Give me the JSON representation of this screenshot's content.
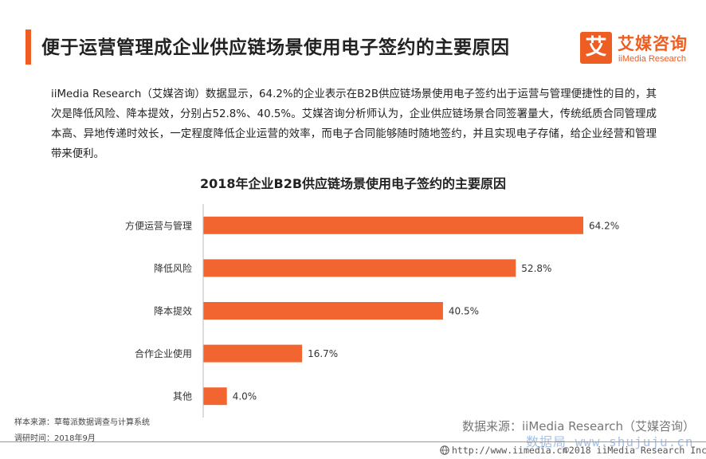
{
  "header": {
    "title": "便于运营管理成企业供应链场景使用电子签约的主要原因"
  },
  "logo": {
    "mark": "艾",
    "name_cn": "艾媒咨询",
    "name_en": "iiMedia Research"
  },
  "intro": "iiMedia Research（艾媒咨询）数据显示，64.2%的企业表示在B2B供应链场景使用电子签约出于运营与管理便捷性的目的，其次是降低风险、降本提效，分别占52.8%、40.5%。艾媒咨询分析师认为，企业供应链场景合同签署量大，传统纸质合同管理成本高、异地传递时效长，一定程度降低企业运营的效率，而电子合同能够随时随地签约，并且实现电子存储，给企业经营和管理带来便利。",
  "chart_data": {
    "type": "bar",
    "orientation": "horizontal",
    "title": "2018年企业B2B供应链场景使用电子签约的主要原因",
    "categories": [
      "方便运营与管理",
      "降低风险",
      "降本提效",
      "合作企业使用",
      "其他"
    ],
    "values": [
      64.2,
      52.8,
      40.5,
      16.7,
      4.0
    ],
    "value_labels": [
      "64.2%",
      "52.8%",
      "40.5%",
      "16.7%",
      "4.0%"
    ],
    "unit": "%",
    "xlim": [
      0,
      70
    ],
    "grid": false,
    "bar_color": "#f26531"
  },
  "footer": {
    "sample_source": "样本来源：草莓派数据调查与计算系统",
    "survey_time": "调研时间：2018年9月",
    "data_source": "数据来源：iiMedia Research（艾媒咨询）",
    "url": "http://www.iimedia.cn",
    "copyright": "©2018  iiMedia Research Inc",
    "watermark": "数据局 www.shujuju.cn"
  }
}
